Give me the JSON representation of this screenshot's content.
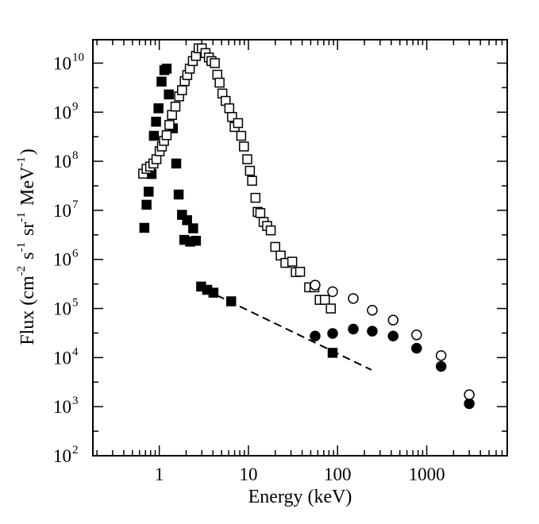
{
  "chart_data": {
    "type": "scatter",
    "title": "",
    "xlabel": "Energy (keV)",
    "ylabel": {
      "parts": [
        {
          "text": "Flux (cm",
          "sup": ""
        },
        {
          "text": "",
          "sup": "-2"
        },
        {
          "text": " s",
          "sup": ""
        },
        {
          "text": "",
          "sup": "-1"
        },
        {
          "text": " sr",
          "sup": ""
        },
        {
          "text": "",
          "sup": "-1"
        },
        {
          "text": " MeV",
          "sup": ""
        },
        {
          "text": "",
          "sup": "-1"
        },
        {
          "text": ")",
          "sup": ""
        }
      ]
    },
    "xscale": "log",
    "yscale": "log",
    "xlim": [
      0.18,
      8000
    ],
    "ylim": [
      100,
      30000000000
    ],
    "x_ticks": [
      {
        "value": 1,
        "label": "1"
      },
      {
        "value": 10,
        "label": "10"
      },
      {
        "value": 100,
        "label": "100"
      },
      {
        "value": 1000,
        "label": "1000"
      }
    ],
    "y_ticks": [
      {
        "value": 100,
        "base": "10",
        "exp": "2"
      },
      {
        "value": 1000,
        "base": "10",
        "exp": "3"
      },
      {
        "value": 10000,
        "base": "10",
        "exp": "4"
      },
      {
        "value": 100000,
        "base": "10",
        "exp": "5"
      },
      {
        "value": 1000000,
        "base": "10",
        "exp": "6"
      },
      {
        "value": 10000000,
        "base": "10",
        "exp": "7"
      },
      {
        "value": 100000000,
        "base": "10",
        "exp": "8"
      },
      {
        "value": 1000000000,
        "base": "10",
        "exp": "9"
      },
      {
        "value": 10000000000,
        "base": "10",
        "exp": "10"
      }
    ],
    "series": [
      {
        "name": "filled-squares",
        "marker": "square",
        "fill": "#000000",
        "points": [
          [
            0.68,
            4400000
          ],
          [
            0.72,
            13000000
          ],
          [
            0.76,
            24000000
          ],
          [
            0.82,
            55000000
          ],
          [
            0.87,
            330000000
          ],
          [
            0.92,
            640000000
          ],
          [
            0.98,
            1200000000
          ],
          [
            1.06,
            4200000000
          ],
          [
            1.14,
            7200000000
          ],
          [
            1.21,
            7700000000
          ],
          [
            1.28,
            2300000000
          ],
          [
            1.42,
            470000000
          ],
          [
            1.55,
            90000000
          ],
          [
            1.65,
            21000000
          ],
          [
            1.8,
            8100000
          ],
          [
            1.91,
            2500000
          ],
          [
            2.05,
            6300000
          ],
          [
            2.22,
            2300000
          ],
          [
            2.4,
            4300000
          ],
          [
            2.58,
            2400000
          ],
          [
            2.95,
            280000
          ],
          [
            3.45,
            240000
          ],
          [
            4.05,
            210000
          ],
          [
            6.4,
            140000
          ],
          [
            88,
            12500
          ]
        ]
      },
      {
        "name": "open-squares",
        "marker": "square",
        "fill": "none",
        "points": [
          [
            0.66,
            56000000
          ],
          [
            0.72,
            70000000
          ],
          [
            0.79,
            78000000
          ],
          [
            0.86,
            90000000
          ],
          [
            0.93,
            110000000
          ],
          [
            1.01,
            160000000
          ],
          [
            1.07,
            200000000
          ],
          [
            1.13,
            260000000
          ],
          [
            1.21,
            340000000
          ],
          [
            1.3,
            550000000
          ],
          [
            1.39,
            880000000
          ],
          [
            1.52,
            1300000000
          ],
          [
            1.67,
            2100000000
          ],
          [
            1.8,
            2800000000
          ],
          [
            1.93,
            4300000000
          ],
          [
            2.06,
            5700000000
          ],
          [
            2.2,
            7700000000
          ],
          [
            2.38,
            11000000000
          ],
          [
            2.58,
            14000000000
          ],
          [
            2.76,
            20000000000
          ],
          [
            3.0,
            20000000000
          ],
          [
            3.3,
            16000000000
          ],
          [
            3.6,
            13000000000
          ],
          [
            3.85,
            11000000000
          ],
          [
            4.2,
            10000000000
          ],
          [
            4.48,
            5800000000
          ],
          [
            4.75,
            4000000000
          ],
          [
            5.1,
            2400000000
          ],
          [
            5.55,
            1700000000
          ],
          [
            6.1,
            1200000000
          ],
          [
            6.55,
            800000000
          ],
          [
            7.0,
            500000000
          ],
          [
            7.65,
            600000000
          ],
          [
            8.3,
            330000000
          ],
          [
            8.9,
            200000000
          ],
          [
            9.7,
            110000000
          ],
          [
            10.4,
            64000000
          ],
          [
            11.0,
            40000000
          ],
          [
            12.0,
            18000000
          ],
          [
            12.7,
            9300000
          ],
          [
            13.6,
            8800000
          ],
          [
            14.8,
            5800000
          ],
          [
            16.2,
            4800000
          ],
          [
            17.8,
            3900000
          ],
          [
            20.0,
            1800000
          ],
          [
            23.0,
            1200000
          ],
          [
            26.0,
            850000
          ],
          [
            31.0,
            900000
          ],
          [
            34.0,
            550000
          ],
          [
            38.0,
            560000
          ],
          [
            48.0,
            270000
          ],
          [
            55.0,
            270000
          ],
          [
            63.0,
            150000
          ],
          [
            72.0,
            150000
          ],
          [
            84.0,
            100000
          ]
        ]
      },
      {
        "name": "filled-circles",
        "marker": "circle",
        "fill": "#000000",
        "points": [
          [
            56,
            27500
          ],
          [
            88,
            31000
          ],
          [
            150,
            38000
          ],
          [
            245,
            34500
          ],
          [
            420,
            27500
          ],
          [
            770,
            15500
          ],
          [
            1450,
            6600
          ],
          [
            3000,
            1150
          ]
        ]
      },
      {
        "name": "open-circles",
        "marker": "circle",
        "fill": "none",
        "points": [
          [
            56,
            300000
          ],
          [
            88,
            220000
          ],
          [
            150,
            160000
          ],
          [
            245,
            92000
          ],
          [
            420,
            58000
          ],
          [
            770,
            29000
          ],
          [
            1450,
            11000
          ],
          [
            3000,
            1750
          ]
        ]
      },
      {
        "name": "dashed-fit",
        "marker": "line",
        "style": "dashed",
        "points": [
          [
            3.3,
            240000
          ],
          [
            240,
            5600
          ]
        ]
      }
    ]
  }
}
